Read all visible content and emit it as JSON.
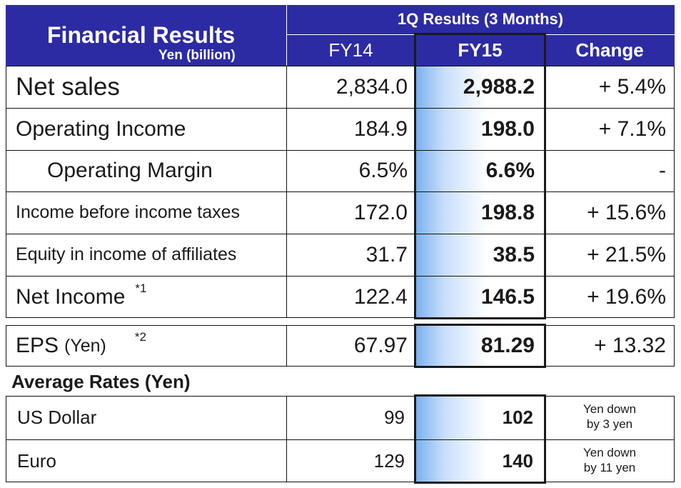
{
  "header": {
    "title": "Financial Results",
    "unit": "Yen (billion)",
    "period": "1Q Results (3 Months)",
    "col_fy14": "FY14",
    "col_fy15": "FY15",
    "col_change": "Change"
  },
  "rows": [
    {
      "label": "Net sales",
      "fy14": "2,834.0",
      "fy15": "2,988.2",
      "change": "+ 5.4%"
    },
    {
      "label": "Operating Income",
      "fy14": "184.9",
      "fy15": "198.0",
      "change": "+ 7.1%"
    },
    {
      "label": "Operating Margin",
      "fy14": "6.5%",
      "fy15": "6.6%",
      "change": "-"
    },
    {
      "label": "Income before income taxes",
      "fy14": "172.0",
      "fy15": "198.8",
      "change": "+ 15.6%"
    },
    {
      "label": "Equity in income of affiliates",
      "fy14": "31.7",
      "fy15": "38.5",
      "change": "+ 21.5%"
    },
    {
      "label": "Net Income",
      "note": "*1",
      "fy14": "122.4",
      "fy15": "146.5",
      "change": "+ 19.6%"
    }
  ],
  "eps": {
    "label": "EPS",
    "unit": "(Yen)",
    "note": "*2",
    "fy14": "67.97",
    "fy15": "81.29",
    "change": "+ 13.32"
  },
  "rates": {
    "title": "Average Rates (Yen)",
    "rows": [
      {
        "label": "US Dollar",
        "fy14": "99",
        "fy15": "102",
        "change_line1": "Yen down",
        "change_line2": "by 3 yen"
      },
      {
        "label": "Euro",
        "fy14": "129",
        "fy15": "140",
        "change_line1": "Yen down",
        "change_line2": "by 11 yen"
      }
    ]
  },
  "colors": {
    "header_bg": "#2c2ba3",
    "fy15_gradient": "#7ab0f0"
  }
}
